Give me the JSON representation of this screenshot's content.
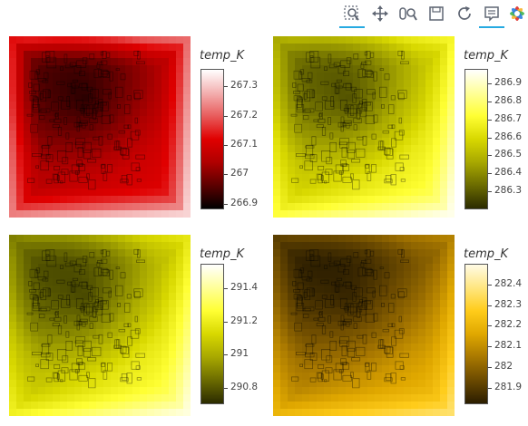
{
  "toolbar": {
    "tools": [
      {
        "name": "box-zoom-icon",
        "active": true
      },
      {
        "name": "pan-icon",
        "active": false
      },
      {
        "name": "wheel-zoom-icon",
        "active": false
      },
      {
        "name": "save-icon",
        "active": false
      },
      {
        "name": "reset-icon",
        "active": false
      },
      {
        "name": "hover-icon",
        "active": true
      },
      {
        "name": "bokeh-logo-icon",
        "active": false
      }
    ]
  },
  "chart_data": [
    {
      "type": "heatmap",
      "colorbar_title": "temp_K",
      "clim": [
        266.88,
        267.36
      ],
      "ticks": [
        266.9,
        267,
        267.1,
        267.2,
        267.3
      ],
      "tick_labels": [
        "266.9",
        "267",
        "267.1",
        "267.2",
        "267.3"
      ],
      "colormap": [
        "#000000",
        "#5c0000",
        "#b00000",
        "#e00000",
        "#e85c5c",
        "#f3b0b0",
        "#ffffff"
      ],
      "field": {
        "base": 0.35,
        "gx": 0.18,
        "gy": 0.22,
        "center_dip": 0.25,
        "edge_rise": 0.45
      }
    },
    {
      "type": "heatmap",
      "colorbar_title": "temp_K",
      "clim": [
        286.2,
        286.98
      ],
      "ticks": [
        286.3,
        286.4,
        286.5,
        286.6,
        286.7,
        286.8,
        286.9
      ],
      "tick_labels": [
        "286.3",
        "286.4",
        "286.5",
        "286.6",
        "286.7",
        "286.8",
        "286.9"
      ],
      "colormap": [
        "#2b2b00",
        "#6b6b00",
        "#a8a800",
        "#d8d800",
        "#ffff33",
        "#ffff99",
        "#ffffff"
      ],
      "field": {
        "base": 0.45,
        "gx": 0.3,
        "gy": 0.35,
        "center_dip": 0.3,
        "edge_rise": 0.25
      }
    },
    {
      "type": "heatmap",
      "colorbar_title": "temp_K",
      "clim": [
        290.7,
        291.55
      ],
      "ticks": [
        290.8,
        291,
        291.2,
        291.4
      ],
      "tick_labels": [
        "290.8",
        "291",
        "291.2",
        "291.4"
      ],
      "colormap": [
        "#2b2b00",
        "#6b6b00",
        "#a8a800",
        "#d8d800",
        "#ffff33",
        "#ffff99",
        "#ffffff"
      ],
      "field": {
        "base": 0.42,
        "gx": 0.35,
        "gy": 0.4,
        "center_dip": 0.28,
        "edge_rise": 0.2
      }
    },
    {
      "type": "heatmap",
      "colorbar_title": "temp_K",
      "clim": [
        281.82,
        282.5
      ],
      "ticks": [
        281.9,
        282,
        282.1,
        282.2,
        282.3,
        282.4
      ],
      "tick_labels": [
        "281.9",
        "282",
        "282.1",
        "282.2",
        "282.3",
        "282.4"
      ],
      "colormap": [
        "#2b1d00",
        "#6b4a00",
        "#a87800",
        "#e0a800",
        "#ffcc1a",
        "#ffe680",
        "#fffbe6"
      ],
      "field": {
        "base": 0.3,
        "gx": 0.25,
        "gy": 0.45,
        "center_dip": 0.2,
        "edge_rise": 0.2
      }
    }
  ]
}
